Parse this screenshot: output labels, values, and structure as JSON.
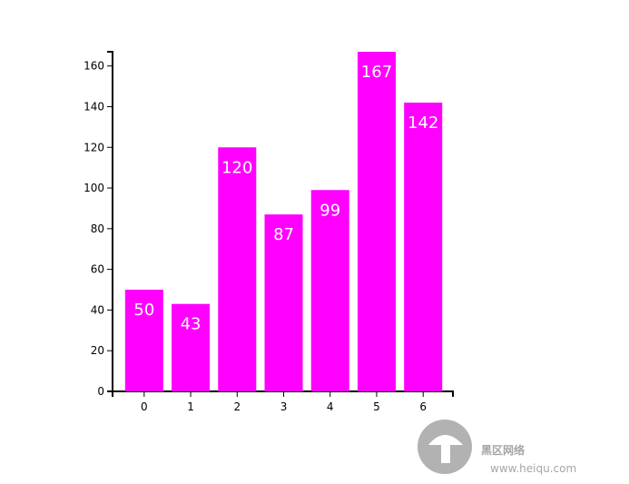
{
  "chart_data": {
    "type": "bar",
    "categories": [
      "0",
      "1",
      "2",
      "3",
      "4",
      "5",
      "6"
    ],
    "values": [
      50,
      43,
      120,
      87,
      99,
      167,
      142
    ],
    "color": "#ff00ff",
    "ylim": [
      0,
      167
    ],
    "yticks": [
      0,
      20,
      40,
      60,
      80,
      100,
      120,
      140,
      160
    ]
  },
  "watermark": {
    "text": "黑区网络",
    "url": "www.heiqu.com"
  }
}
